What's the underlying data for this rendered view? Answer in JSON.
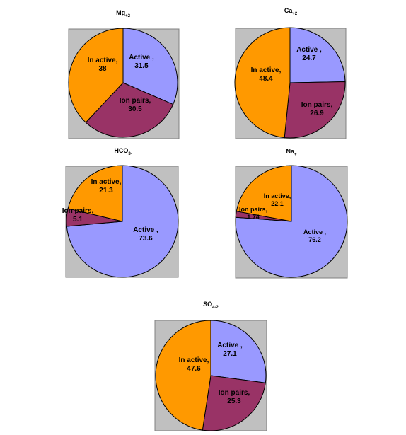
{
  "chart_data": [
    {
      "type": "pie",
      "title": "Mg+2",
      "slices": [
        {
          "label": "Active ,",
          "value": 31.5,
          "value_label": "31.5",
          "color": "#9999ff"
        },
        {
          "label": "Ion pairs,",
          "value": 30.5,
          "value_label": "30.5",
          "color": "#993366"
        },
        {
          "label": "In active,",
          "value": 38,
          "value_label": "38",
          "color": "#ff9900"
        }
      ]
    },
    {
      "type": "pie",
      "title": "Ca+2",
      "slices": [
        {
          "label": "Active ,",
          "value": 24.7,
          "value_label": "24.7",
          "color": "#9999ff"
        },
        {
          "label": "Ion pairs,",
          "value": 26.9,
          "value_label": "26.9",
          "color": "#993366"
        },
        {
          "label": "In active,",
          "value": 48.4,
          "value_label": "48.4",
          "color": "#ff9900"
        }
      ]
    },
    {
      "type": "pie",
      "title": "HCO3-",
      "slices": [
        {
          "label": "Active ,",
          "value": 73.6,
          "value_label": "73.6",
          "color": "#9999ff"
        },
        {
          "label": "Ion pairs,",
          "value": 5.1,
          "value_label": "5.1",
          "color": "#993366"
        },
        {
          "label": "In active,",
          "value": 21.3,
          "value_label": "21.3",
          "color": "#ff9900"
        }
      ]
    },
    {
      "type": "pie",
      "title": "Na+",
      "slices": [
        {
          "label": "Active ,",
          "value": 76.2,
          "value_label": "76.2",
          "color": "#9999ff"
        },
        {
          "label": "Ion pairs,",
          "value": 1.74,
          "value_label": "1.74",
          "color": "#993366"
        },
        {
          "label": "In active,",
          "value": 22.1,
          "value_label": "22.1",
          "color": "#ff9900"
        }
      ]
    },
    {
      "type": "pie",
      "title": "SO4-2",
      "slices": [
        {
          "label": "Active ,",
          "value": 27.1,
          "value_label": "27.1",
          "color": "#9999ff"
        },
        {
          "label": "Ion pairs,",
          "value": 25.3,
          "value_label": "25.3",
          "color": "#993366"
        },
        {
          "label": "In active,",
          "value": 47.6,
          "value_label": "47.6",
          "color": "#ff9900"
        }
      ]
    }
  ]
}
